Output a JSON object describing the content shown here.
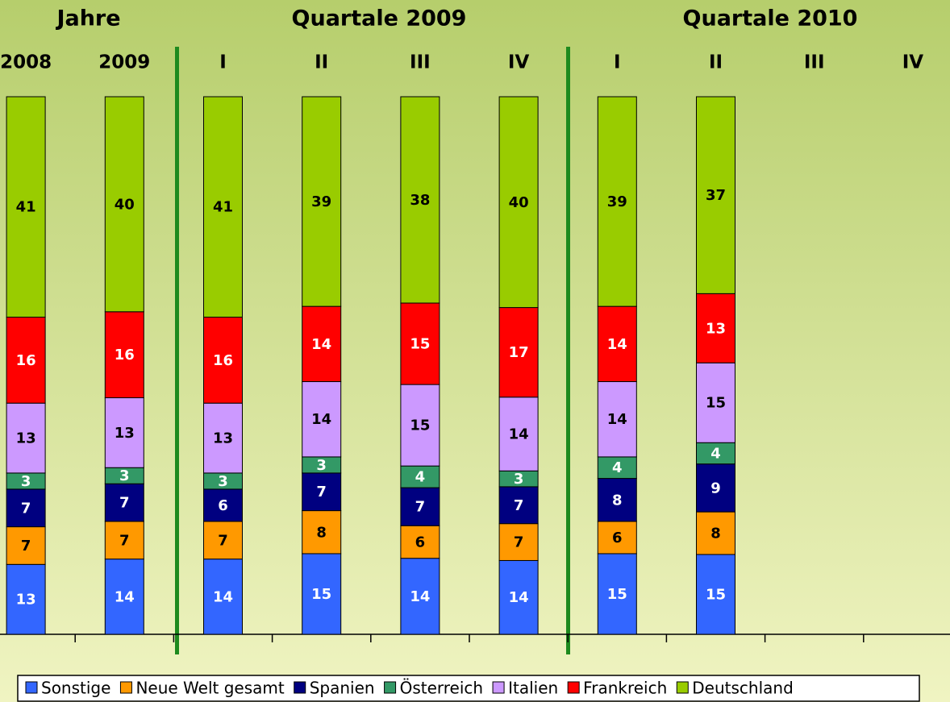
{
  "chart_data": {
    "type": "bar",
    "stacked": "percent",
    "groups": [
      "Jahre",
      "Quartale 2009",
      "Quartale 2010"
    ],
    "categories": [
      "2008",
      "2009",
      "I",
      "II",
      "III",
      "IV",
      "I",
      "II",
      "III",
      "IV"
    ],
    "series": [
      {
        "name": "Sonstige",
        "color": "#3366ff",
        "values": [
          13,
          14,
          14,
          15,
          14,
          14,
          15,
          15,
          null,
          null
        ]
      },
      {
        "name": "Neue Welt gesamt",
        "color": "#ff9900",
        "values": [
          7,
          7,
          7,
          8,
          6,
          7,
          6,
          8,
          null,
          null
        ]
      },
      {
        "name": "Spanien",
        "color": "#000080",
        "values": [
          7,
          7,
          6,
          7,
          7,
          7,
          8,
          9,
          null,
          null
        ]
      },
      {
        "name": "Österreich",
        "color": "#339966",
        "values": [
          3,
          3,
          3,
          3,
          4,
          3,
          4,
          4,
          null,
          null
        ]
      },
      {
        "name": "Italien",
        "color": "#cc99ff",
        "values": [
          13,
          13,
          13,
          14,
          15,
          14,
          14,
          15,
          null,
          null
        ]
      },
      {
        "name": "Frankreich",
        "color": "#ff0000",
        "values": [
          16,
          16,
          16,
          14,
          15,
          17,
          14,
          13,
          null,
          null
        ]
      },
      {
        "name": "Deutschland",
        "color": "#99cc00",
        "values": [
          41,
          40,
          41,
          39,
          38,
          40,
          39,
          37,
          null,
          null
        ]
      }
    ],
    "legend": "bottom"
  }
}
